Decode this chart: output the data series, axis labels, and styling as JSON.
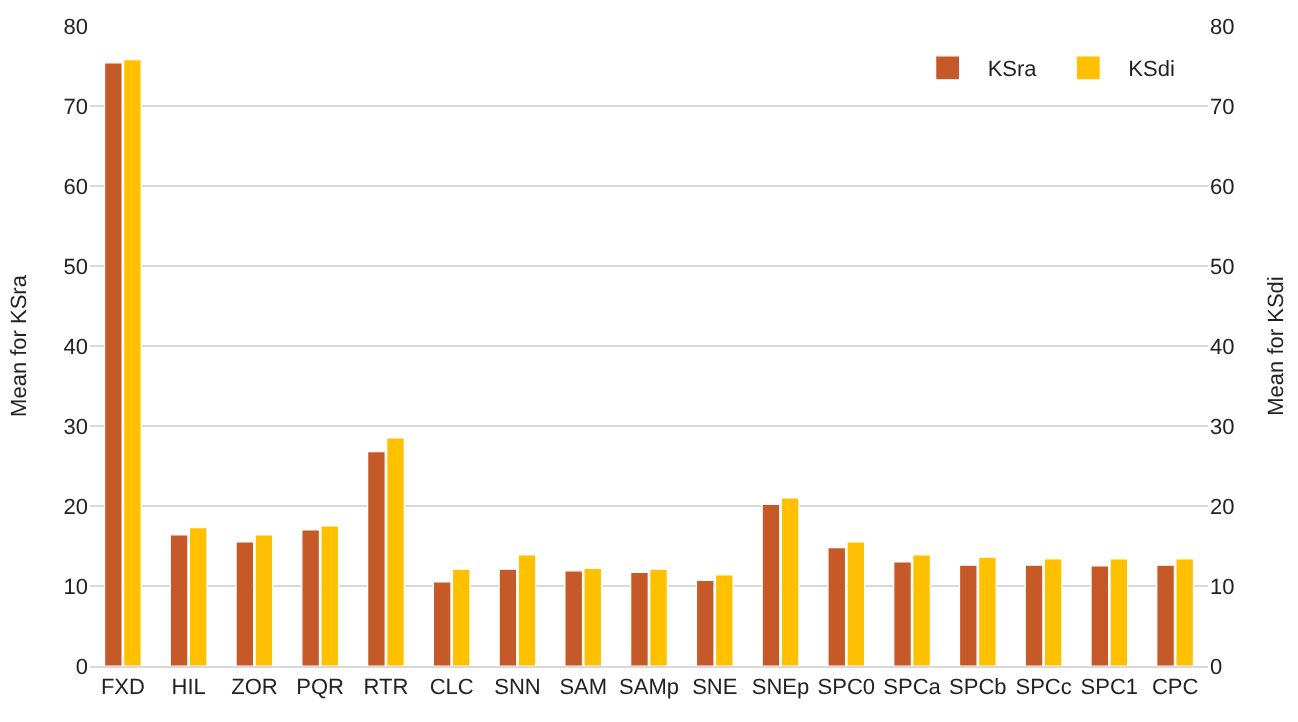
{
  "chart_data": {
    "type": "bar",
    "ylabel": "Mean for KSra",
    "y2label": "Mean for KSdi",
    "categories": [
      "FXD",
      "HIL",
      "ZOR",
      "PQR",
      "RTR",
      "CLC",
      "SNN",
      "SAM",
      "SAMp",
      "SNE",
      "SNEp",
      "SPC0",
      "SPCa",
      "SPCb",
      "SPCc",
      "SPC1",
      "CPC"
    ],
    "series": [
      {
        "name": "KSra",
        "color": "#c55a28",
        "values": [
          75.4,
          16.4,
          15.5,
          17.0,
          26.8,
          10.5,
          12.1,
          11.9,
          11.7,
          10.7,
          20.2,
          14.8,
          13.0,
          12.6,
          12.6,
          12.5,
          12.6
        ]
      },
      {
        "name": "KSdi",
        "color": "#ffc000",
        "axis": "y2",
        "values": [
          75.8,
          17.3,
          16.4,
          17.5,
          28.5,
          12.1,
          13.9,
          12.2,
          12.1,
          11.4,
          21.0,
          15.5,
          13.9,
          13.6,
          13.4,
          13.4,
          13.4
        ]
      }
    ],
    "ylim": [
      0,
      80
    ],
    "yticks": [
      0,
      10,
      20,
      30,
      40,
      50,
      60,
      70,
      80
    ],
    "y2lim": [
      0,
      80
    ],
    "y2ticks": [
      0,
      10,
      20,
      30,
      40,
      50,
      60,
      70,
      80
    ],
    "grid": "y",
    "legend": "top right"
  }
}
